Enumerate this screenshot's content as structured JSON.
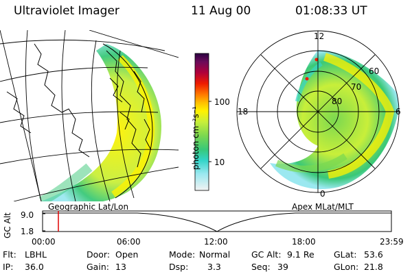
{
  "header": {
    "title": "Ultraviolet Imager",
    "date": "11 Aug 00",
    "time": "01:08:33 UT"
  },
  "colorbar": {
    "unit_label": "photon cm⁻²s⁻¹",
    "tick_labels": [
      "100",
      "10"
    ],
    "scale": "log",
    "colors": [
      "#f2f2f2",
      "#9be8f0",
      "#33d4c8",
      "#39c878",
      "#7bd850",
      "#c8ef3a",
      "#fff200",
      "#ffc000",
      "#ff7a00",
      "#ee1c00",
      "#b0003a",
      "#6a0b5a",
      "#2a0040"
    ]
  },
  "left_map": {
    "label": "Geographic Lat/Lon",
    "projection_icon": "globe-map-icon"
  },
  "polar_plot": {
    "label": "Apex MLat/MLT",
    "mlt_labels": {
      "top": "12",
      "left": "18",
      "right": "6",
      "bottom": "0"
    },
    "mlat_labels": [
      "60",
      "70",
      "80"
    ]
  },
  "timeline": {
    "axis_label": "GC Alt",
    "y_ticks": [
      "9.0",
      "1.8"
    ],
    "x_ticks": [
      "00:00",
      "06:00",
      "12:00",
      "18:00",
      "23:59"
    ],
    "marker_time": "01:08",
    "marker_color": "#e00000"
  },
  "info": {
    "filter_label": "Flt:",
    "filter_value": "LBHL",
    "ip_label": "IP:",
    "ip_value": "36.0",
    "door_label": "Door:",
    "door_value": "Open",
    "gain_label": "Gain:",
    "gain_value": "13",
    "mode_label": "Mode:",
    "mode_value": "Normal",
    "dsp_label": "Dsp:",
    "dsp_value": "3.3",
    "gcalt_label": "GC Alt:",
    "gcalt_value": "9.1 Re",
    "seq_label": "Seq:",
    "seq_value": "39",
    "glat_label": "GLat:",
    "glat_value": "53.6",
    "glon_label": "GLon:",
    "glon_value": "21.8"
  }
}
